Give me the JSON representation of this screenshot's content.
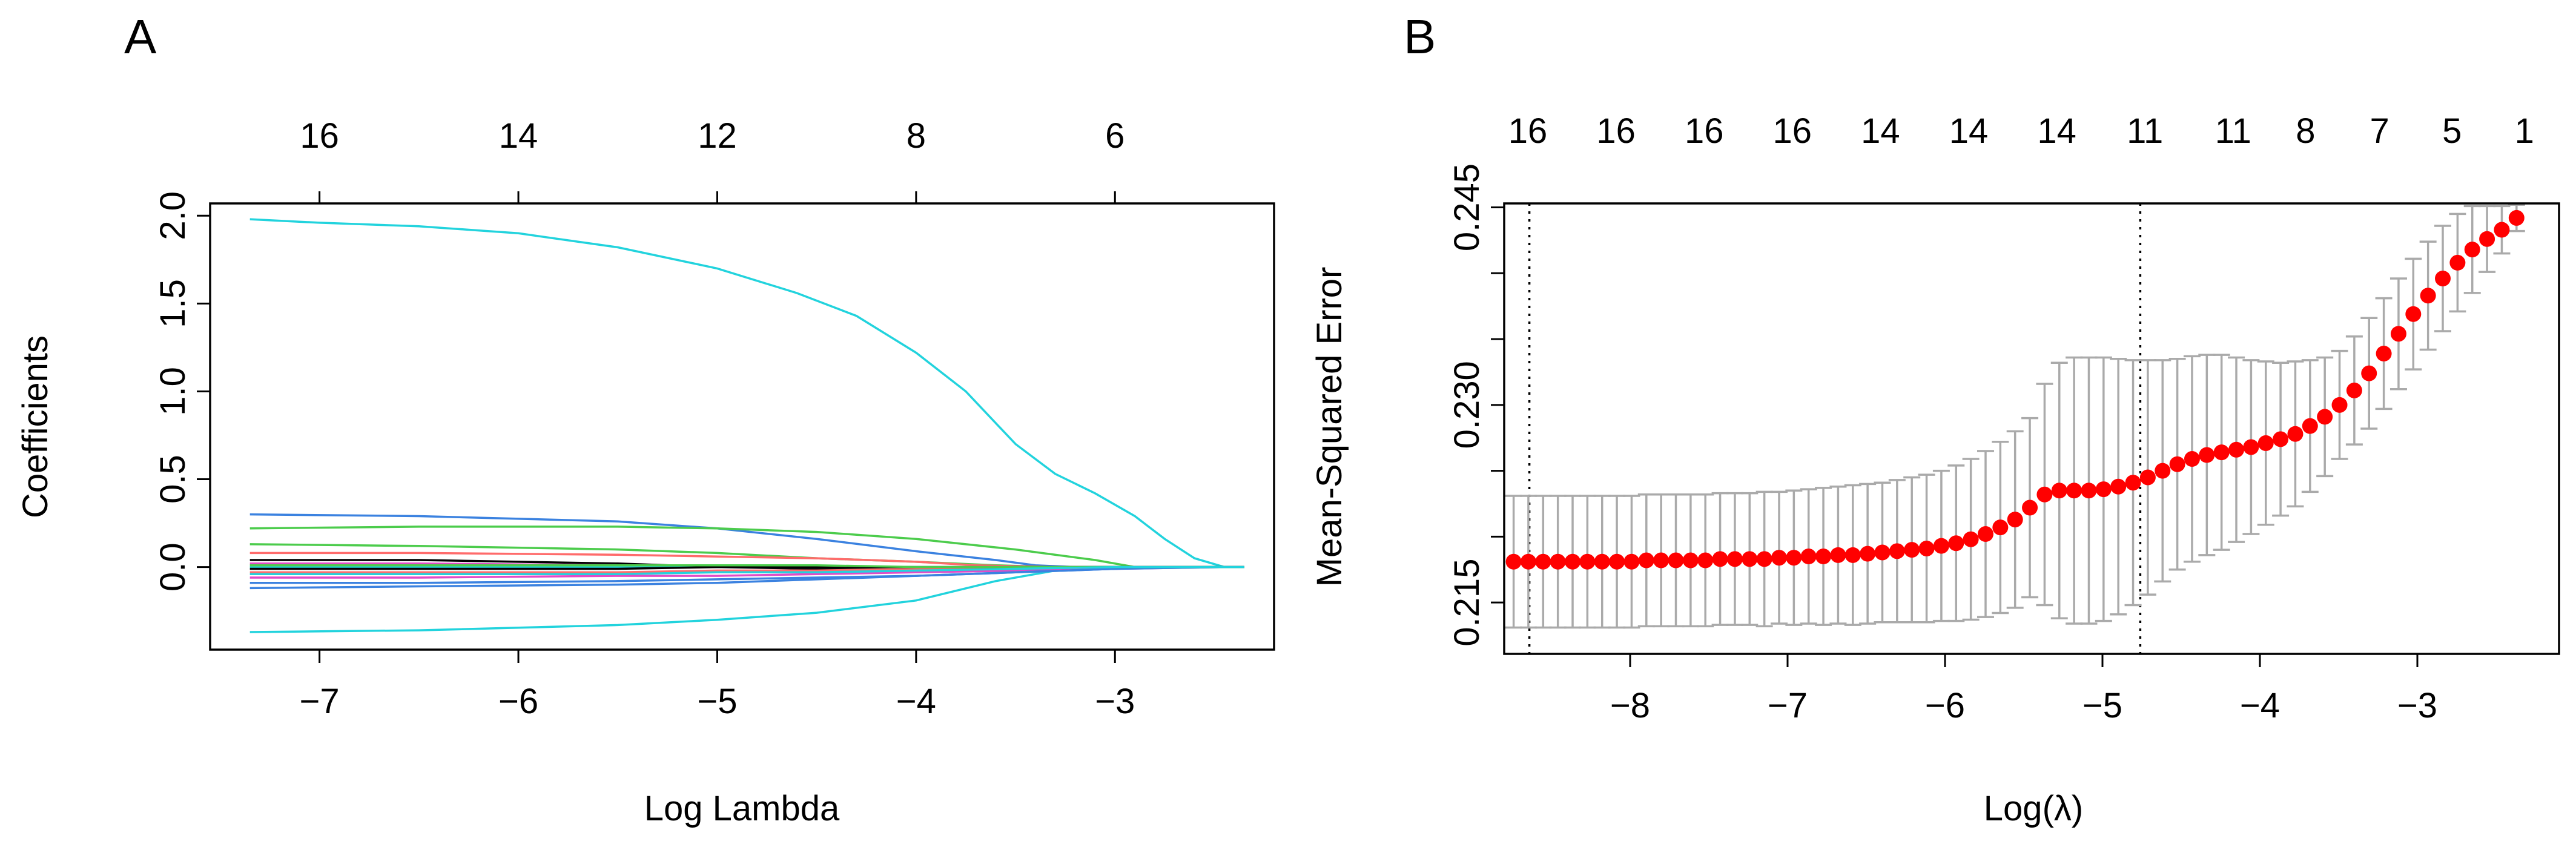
{
  "chart_data": [
    {
      "panel": "A",
      "type": "line",
      "panel_label": "A",
      "xlabel": "Log Lambda",
      "ylabel": "Coefficients",
      "xlim": [
        -7.55,
        -2.2
      ],
      "ylim": [
        -0.47,
        2.07
      ],
      "x_ticks": [
        -7,
        -6,
        -5,
        -4,
        -3
      ],
      "x_tick_labels": [
        "−7",
        "−6",
        "−5",
        "−4",
        "−3"
      ],
      "y_ticks": [
        0.0,
        0.5,
        1.0,
        1.5,
        2.0
      ],
      "y_tick_labels": [
        "0.0",
        "0.5",
        "1.0",
        "1.5",
        "2.0"
      ],
      "top_ticks": [
        -7,
        -6,
        -5,
        -4,
        -3
      ],
      "top_tick_labels": [
        "16",
        "14",
        "12",
        "8",
        "6"
      ],
      "series": [
        {
          "name": "coef-1",
          "color": "#22d3dd",
          "x": [
            -7.35,
            -7,
            -6.5,
            -6,
            -5.5,
            -5,
            -4.6,
            -4.3,
            -4.0,
            -3.75,
            -3.5,
            -3.3,
            -3.1,
            -2.9,
            -2.75,
            -2.6,
            -2.45,
            -2.35
          ],
          "y": [
            1.98,
            1.96,
            1.94,
            1.9,
            1.82,
            1.7,
            1.56,
            1.43,
            1.22,
            1.0,
            0.7,
            0.53,
            0.42,
            0.29,
            0.16,
            0.05,
            0.0,
            0.0
          ]
        },
        {
          "name": "coef-2",
          "color": "#22d3dd",
          "x": [
            -7.35,
            -6.5,
            -5.5,
            -5,
            -4.5,
            -4,
            -3.6,
            -3.3,
            -3,
            -2.7,
            -2.45,
            -2.35
          ],
          "y": [
            -0.37,
            -0.36,
            -0.33,
            -0.3,
            -0.26,
            -0.19,
            -0.08,
            -0.02,
            0.0,
            0.0,
            0.0,
            0.0
          ]
        },
        {
          "name": "coef-3",
          "color": "#3b82e0",
          "x": [
            -7.35,
            -6.5,
            -5.5,
            -5,
            -4.5,
            -4,
            -3.6,
            -3.4,
            -3.2,
            -2.45,
            -2.35
          ],
          "y": [
            0.3,
            0.29,
            0.26,
            0.22,
            0.16,
            0.09,
            0.04,
            0.01,
            0.0,
            0.0,
            0.0
          ]
        },
        {
          "name": "coef-4",
          "color": "#4ccc4c",
          "x": [
            -7.35,
            -6.5,
            -5.5,
            -5,
            -4.5,
            -4,
            -3.5,
            -3.1,
            -2.9,
            -2.45,
            -2.35
          ],
          "y": [
            0.22,
            0.23,
            0.23,
            0.22,
            0.2,
            0.16,
            0.1,
            0.04,
            0.0,
            0.0,
            0.0
          ]
        },
        {
          "name": "coef-5",
          "color": "#4ccc4c",
          "x": [
            -7.35,
            -6.5,
            -5.5,
            -5,
            -4.5,
            -4,
            -3.6,
            -3.3,
            -3.0,
            -2.45,
            -2.35
          ],
          "y": [
            0.13,
            0.12,
            0.1,
            0.08,
            0.05,
            0.03,
            0.01,
            0.0,
            0.0,
            0.0,
            0.0
          ]
        },
        {
          "name": "coef-6",
          "color": "#ff6b6b",
          "x": [
            -7.35,
            -6.5,
            -5.5,
            -5,
            -4.5,
            -4,
            -3.7,
            -3.3,
            -2.45,
            -2.35
          ],
          "y": [
            0.08,
            0.08,
            0.07,
            0.06,
            0.05,
            0.03,
            0.01,
            0.0,
            0.0,
            0.0
          ]
        },
        {
          "name": "coef-7",
          "color": "#000000",
          "x": [
            -7.35,
            -6.5,
            -6,
            -5.5,
            -5,
            -4.5,
            -4,
            -3.5,
            -2.45,
            -2.35
          ],
          "y": [
            0.04,
            0.04,
            0.03,
            0.02,
            0.0,
            -0.01,
            -0.01,
            0.0,
            0.0,
            0.0
          ]
        },
        {
          "name": "coef-8",
          "color": "#e04cc8",
          "x": [
            -7.35,
            -6.5,
            -5.5,
            -5,
            -4.5,
            -4,
            -3.5,
            -3.2,
            -2.45,
            -2.35
          ],
          "y": [
            0.02,
            0.02,
            0.01,
            0.01,
            0.0,
            0.0,
            0.0,
            0.0,
            0.0,
            0.0
          ]
        },
        {
          "name": "coef-9",
          "color": "#ff6b6b",
          "x": [
            -7.35,
            -6.5,
            -5.5,
            -5,
            -4.5,
            -4,
            -3.5,
            -3.0,
            -2.45,
            -2.35
          ],
          "y": [
            -0.03,
            -0.03,
            -0.03,
            -0.02,
            -0.02,
            -0.01,
            -0.01,
            0.0,
            0.0,
            0.0
          ]
        },
        {
          "name": "coef-10",
          "color": "#e04cc8",
          "x": [
            -7.35,
            -6.5,
            -5.5,
            -5,
            -4.5,
            -4,
            -3.5,
            -3.0,
            -2.45,
            -2.35
          ],
          "y": [
            -0.06,
            -0.06,
            -0.05,
            -0.05,
            -0.04,
            -0.03,
            -0.02,
            -0.01,
            0.0,
            0.0
          ]
        },
        {
          "name": "coef-11",
          "color": "#3b82e0",
          "x": [
            -7.35,
            -6.5,
            -5.5,
            -5,
            -4.5,
            -4,
            -3.5,
            -3.0,
            -2.7,
            -2.45,
            -2.35
          ],
          "y": [
            -0.09,
            -0.09,
            -0.08,
            -0.07,
            -0.06,
            -0.05,
            -0.03,
            -0.01,
            0.0,
            0.0,
            0.0
          ]
        },
        {
          "name": "coef-12",
          "color": "#22d3dd",
          "x": [
            -7.35,
            -6.5,
            -5.5,
            -5,
            -4.5,
            -4,
            -3.5,
            -3.0,
            -2.45,
            -2.35
          ],
          "y": [
            0.0,
            0.0,
            0.0,
            0.0,
            0.0,
            0.0,
            0.0,
            0.0,
            0.0,
            0.0
          ]
        },
        {
          "name": "coef-13",
          "color": "#3b82e0",
          "x": [
            -7.35,
            -6.5,
            -5.5,
            -5,
            -4.5,
            -4,
            -3.5,
            -3.0,
            -2.45,
            -2.35
          ],
          "y": [
            -0.12,
            -0.11,
            -0.1,
            -0.09,
            -0.07,
            -0.05,
            -0.03,
            -0.01,
            0.0,
            0.0
          ]
        },
        {
          "name": "coef-14",
          "color": "#000000",
          "x": [
            -7.35,
            -6.5,
            -5.5,
            -5,
            -4.5,
            -4,
            -3.5,
            -3.0,
            -2.45,
            -2.35
          ],
          "y": [
            -0.01,
            -0.01,
            -0.01,
            0.0,
            0.0,
            0.0,
            0.0,
            0.0,
            0.0,
            0.0
          ]
        },
        {
          "name": "coef-15",
          "color": "#4ccc4c",
          "x": [
            -7.35,
            -6.5,
            -5.5,
            -5,
            -4.5,
            -4,
            -3.5,
            -3.0,
            -2.45,
            -2.35
          ],
          "y": [
            0.01,
            0.01,
            0.01,
            0.01,
            0.01,
            0.0,
            0.0,
            0.0,
            0.0,
            0.0
          ]
        },
        {
          "name": "coef-16",
          "color": "#22d3dd",
          "x": [
            -7.35,
            -6.5,
            -5.5,
            -5,
            -4.5,
            -4,
            -3.5,
            -3.0,
            -2.45,
            -2.35
          ],
          "y": [
            -0.04,
            -0.04,
            -0.04,
            -0.03,
            -0.03,
            -0.02,
            -0.01,
            0.0,
            0.0,
            0.0
          ]
        }
      ]
    },
    {
      "panel": "B",
      "type": "scatter",
      "panel_label": "B",
      "xlabel": "Log(λ)",
      "ylabel": "Mean-Squared Error",
      "xlim": [
        -8.8,
        -2.1
      ],
      "ylim": [
        0.2111,
        0.2453
      ],
      "x_ticks": [
        -8,
        -7,
        -6,
        -5,
        -4,
        -3
      ],
      "x_tick_labels": [
        "−8",
        "−7",
        "−6",
        "−5",
        "−4",
        "−3"
      ],
      "y_ticks": [
        0.215,
        0.22,
        0.225,
        0.23,
        0.235,
        0.24,
        0.245
      ],
      "y_tick_labels": [
        "0.215",
        "",
        "",
        "0.230",
        "",
        "",
        "0.245"
      ],
      "top_ticks": [
        -8.65,
        -8.09,
        -7.53,
        -6.97,
        -6.41,
        -5.85,
        -5.29,
        -4.73,
        -4.17,
        -3.71,
        -3.24,
        -2.78,
        -2.32
      ],
      "top_tick_labels": [
        "16",
        "16",
        "16",
        "16",
        "14",
        "14",
        "14",
        "11",
        "11",
        "8",
        "7",
        "5",
        "1"
      ],
      "vlines": [
        -8.64,
        -4.76
      ],
      "point_color": "#ff0000",
      "errorbar_color": "#aaaaaa",
      "n_points": 69,
      "x_start": -8.74,
      "x_end": -2.37,
      "mse": [
        0.2181,
        0.2181,
        0.2181,
        0.2181,
        0.2181,
        0.2181,
        0.2181,
        0.2181,
        0.2181,
        0.2182,
        0.2182,
        0.2182,
        0.2182,
        0.2182,
        0.2183,
        0.2183,
        0.2183,
        0.2183,
        0.2184,
        0.2184,
        0.2185,
        0.2185,
        0.2186,
        0.2186,
        0.2187,
        0.2188,
        0.2189,
        0.219,
        0.2191,
        0.2193,
        0.2195,
        0.2198,
        0.2202,
        0.2207,
        0.2213,
        0.2222,
        0.2232,
        0.2235,
        0.2235,
        0.2235,
        0.2236,
        0.2238,
        0.2241,
        0.2245,
        0.225,
        0.2255,
        0.2259,
        0.2262,
        0.2264,
        0.2266,
        0.2268,
        0.2271,
        0.2274,
        0.2278,
        0.2284,
        0.2291,
        0.23,
        0.2311,
        0.2324,
        0.2339,
        0.2354,
        0.2369,
        0.2383,
        0.2396,
        0.2408,
        0.2418,
        0.2426,
        0.2433,
        0.2442
      ],
      "upper": [
        0.2231,
        0.2231,
        0.2231,
        0.2231,
        0.2231,
        0.2231,
        0.2231,
        0.2231,
        0.2231,
        0.2232,
        0.2232,
        0.2232,
        0.2232,
        0.2232,
        0.2233,
        0.2233,
        0.2233,
        0.2234,
        0.2234,
        0.2235,
        0.2236,
        0.2237,
        0.2238,
        0.2239,
        0.224,
        0.2241,
        0.2243,
        0.2245,
        0.2247,
        0.225,
        0.2254,
        0.2259,
        0.2265,
        0.2272,
        0.228,
        0.229,
        0.2316,
        0.2332,
        0.2336,
        0.2336,
        0.2336,
        0.2335,
        0.2334,
        0.2334,
        0.2334,
        0.2335,
        0.2337,
        0.2338,
        0.2338,
        0.2336,
        0.2334,
        0.2333,
        0.2332,
        0.2333,
        0.2334,
        0.2336,
        0.2341,
        0.2352,
        0.2366,
        0.2381,
        0.2396,
        0.2411,
        0.2424,
        0.2436,
        0.2445,
        0.2451,
        0.2451,
        0.2451,
        0.2452
      ],
      "lower": [
        0.2131,
        0.2131,
        0.2131,
        0.2131,
        0.2131,
        0.2131,
        0.2131,
        0.2131,
        0.2131,
        0.2132,
        0.2132,
        0.2132,
        0.2132,
        0.2132,
        0.2133,
        0.2133,
        0.2133,
        0.2132,
        0.2134,
        0.2133,
        0.2134,
        0.2133,
        0.2134,
        0.2133,
        0.2134,
        0.2135,
        0.2135,
        0.2135,
        0.2135,
        0.2136,
        0.2136,
        0.2137,
        0.2139,
        0.2142,
        0.2146,
        0.2154,
        0.2148,
        0.2138,
        0.2134,
        0.2134,
        0.2136,
        0.2141,
        0.2148,
        0.2156,
        0.2166,
        0.2175,
        0.2181,
        0.2186,
        0.219,
        0.2196,
        0.2202,
        0.2209,
        0.2216,
        0.2223,
        0.2234,
        0.2246,
        0.2259,
        0.227,
        0.2282,
        0.2297,
        0.2312,
        0.2327,
        0.2342,
        0.2356,
        0.2371,
        0.2385,
        0.2401,
        0.2415,
        0.2432
      ]
    }
  ]
}
